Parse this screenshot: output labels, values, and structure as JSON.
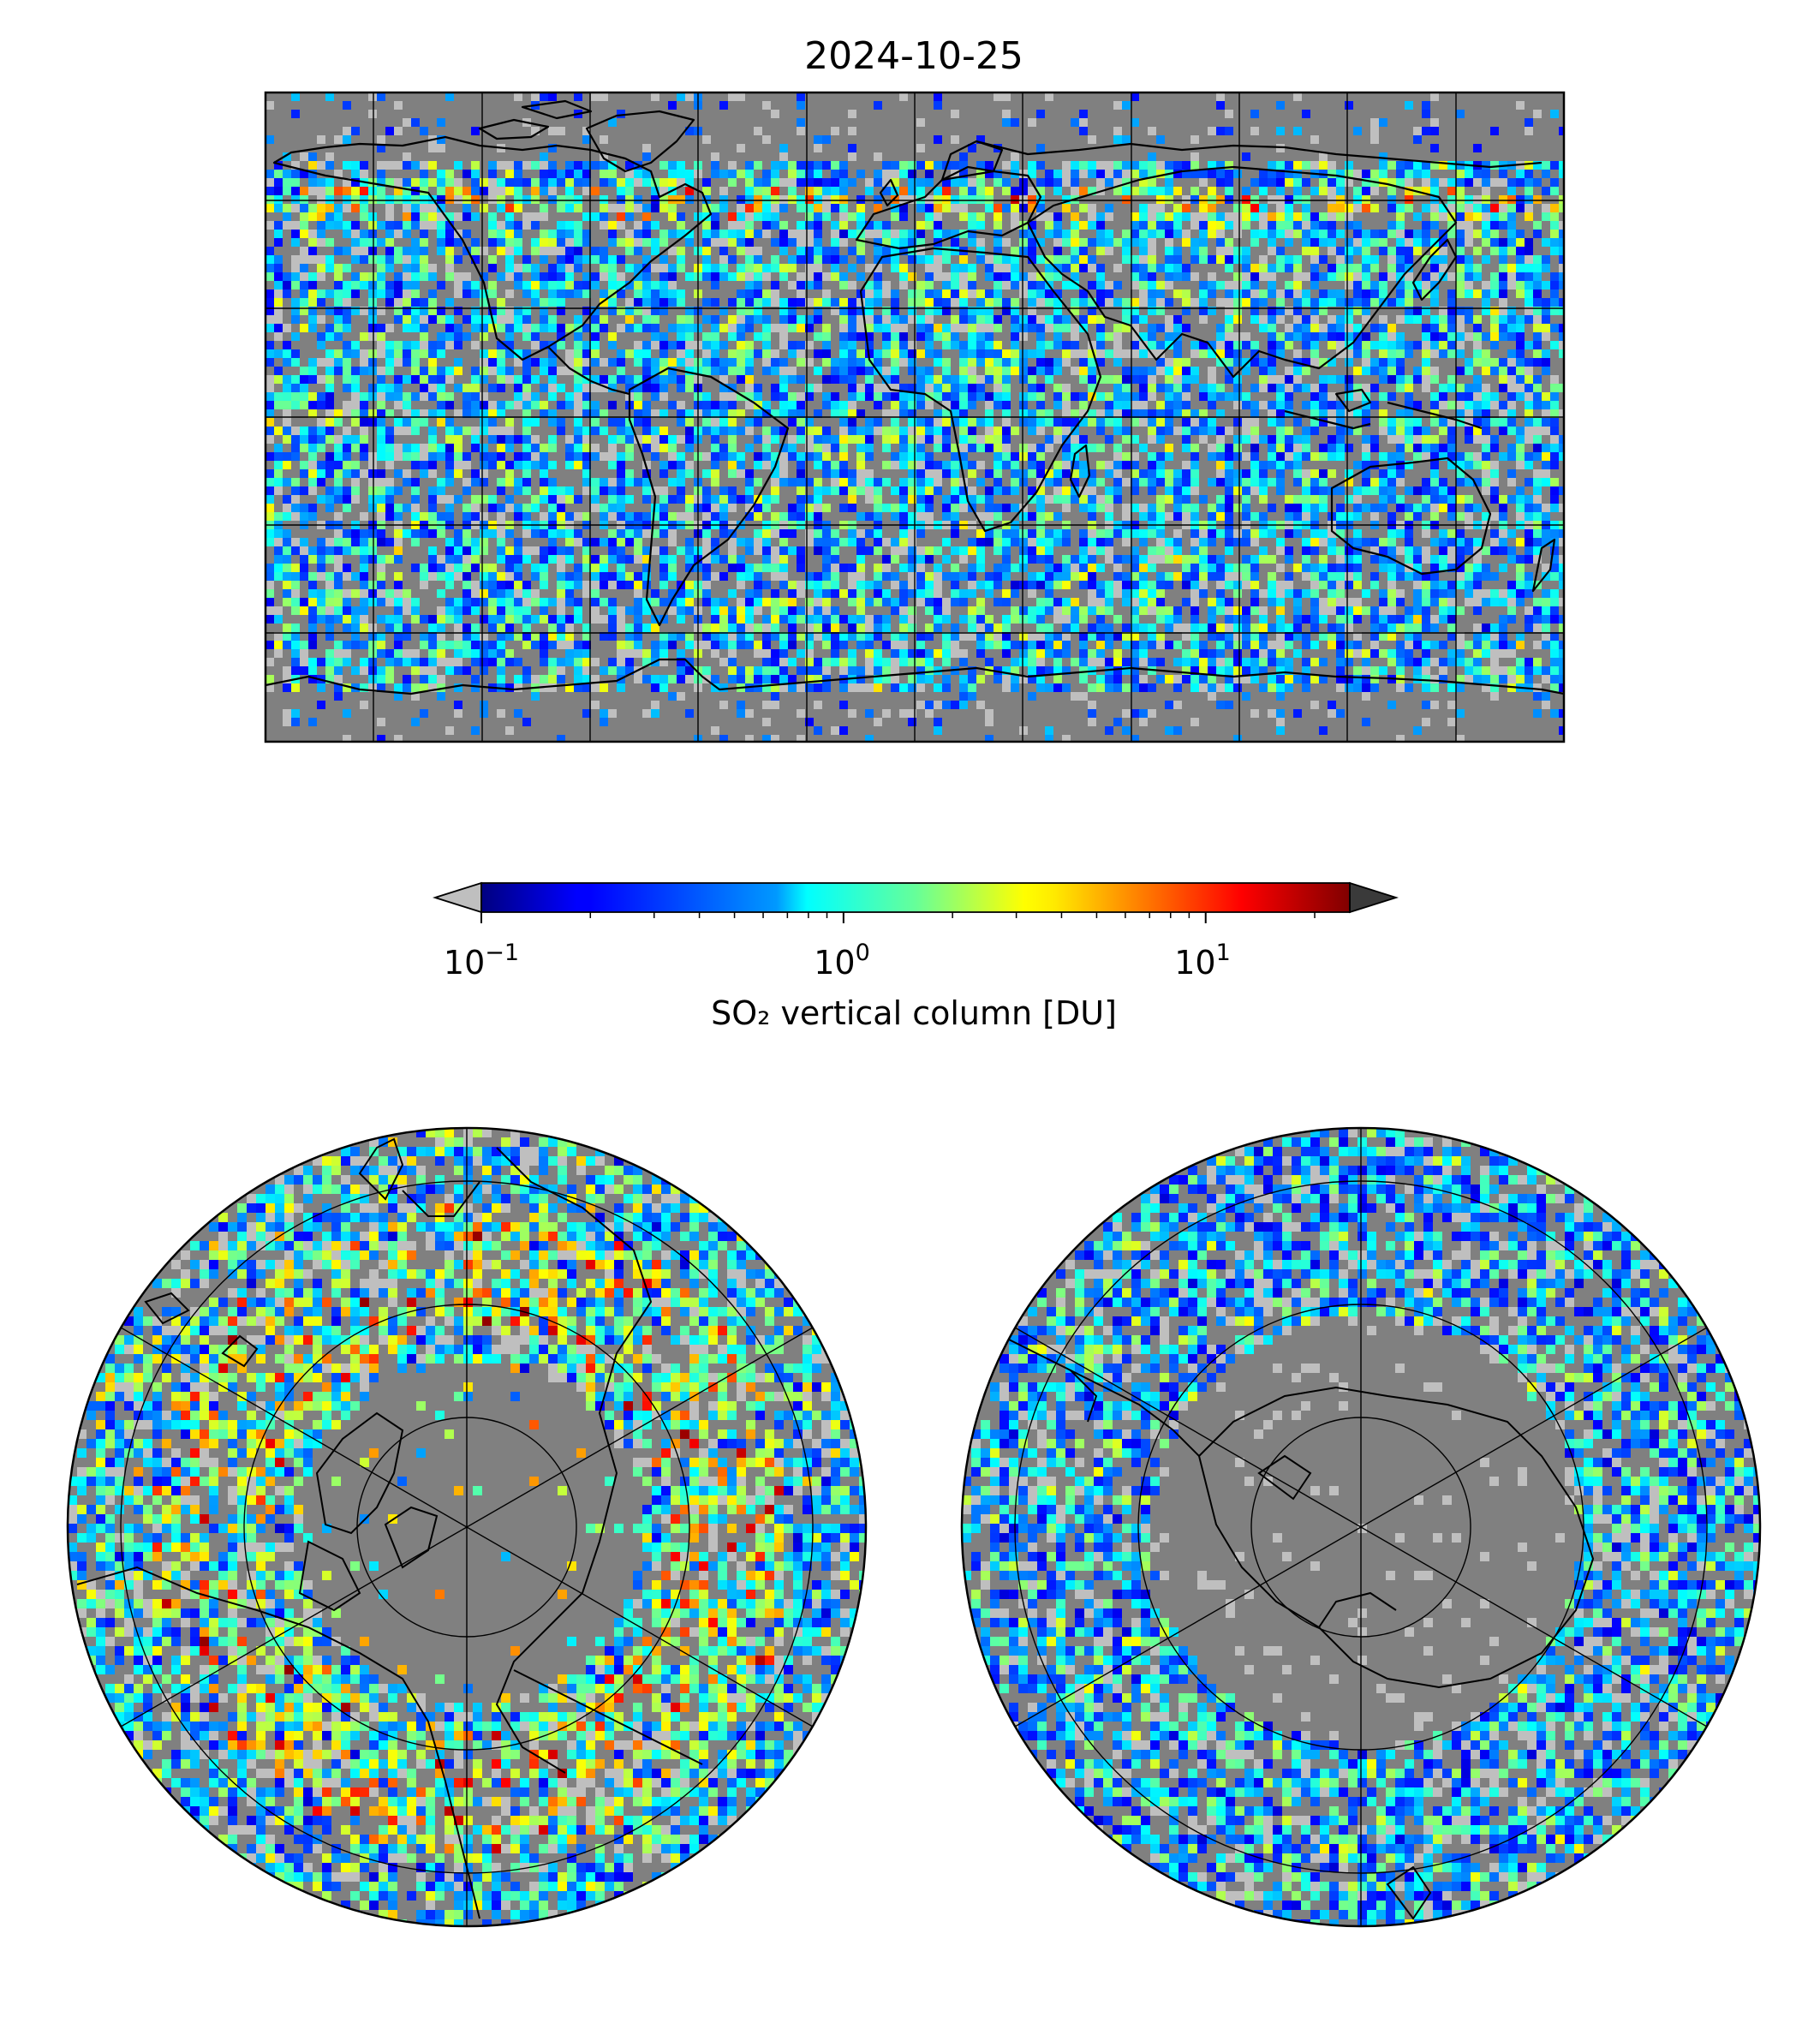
{
  "figure": {
    "title": "2024-10-25"
  },
  "colorbar": {
    "label": "SO₂ vertical column [DU]",
    "scale": "log",
    "range": [
      0.1,
      25
    ],
    "ticks": [
      {
        "base": "10",
        "exp": "−1"
      },
      {
        "base": "10",
        "exp": "0"
      },
      {
        "base": "10",
        "exp": "1"
      }
    ],
    "colormap": "jet",
    "extend": "both",
    "under_color": "#bfbfbf",
    "over_color": "#3a3a3a"
  },
  "maps": [
    {
      "id": "global",
      "projection": "plate-carree",
      "gridlines": "30°"
    },
    {
      "id": "north-pole",
      "projection": "north-polar-stereographic",
      "gridlines": "60° meridians, 20° parallels"
    },
    {
      "id": "south-pole",
      "projection": "south-polar-stereographic",
      "gridlines": "60° meridians, 20° parallels"
    }
  ],
  "colors": {
    "no_data": "#808080",
    "coastline": "#000000",
    "frame": "#000000"
  }
}
